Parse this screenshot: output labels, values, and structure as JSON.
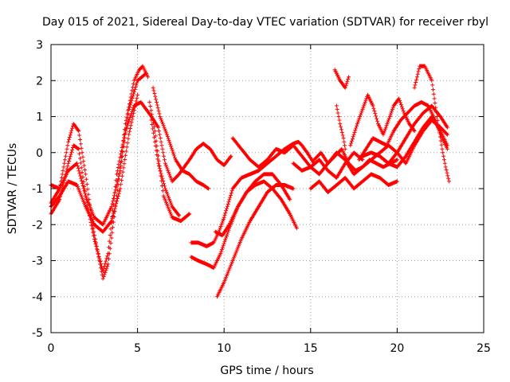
{
  "chart_data": {
    "type": "scatter",
    "title": "Day 015 of 2021, Sidereal Day-to-day VTEC variation (SDTVAR) for receiver rbyl",
    "xlabel": "GPS time / hours",
    "ylabel": "SDTVAR / TECUs",
    "xlim": [
      0,
      25
    ],
    "ylim": [
      -5,
      3
    ],
    "xticks": [
      "0",
      "5",
      "10",
      "15",
      "20",
      "25"
    ],
    "yticks": [
      "3",
      "2",
      "1",
      "0",
      "-1",
      "-2",
      "-3",
      "-4",
      "-5"
    ],
    "grid": true,
    "marker": "+",
    "color": "#ff0000",
    "series": [
      {
        "x": [
          0.0,
          0.5,
          1.0,
          1.3,
          1.6,
          2.0,
          2.4,
          2.8,
          3.0,
          3.3,
          3.8,
          4.3,
          4.8,
          5.1,
          5.3,
          5.6
        ],
        "y": [
          -1.4,
          -1.0,
          0.3,
          0.8,
          0.6,
          -0.6,
          -2.0,
          -3.0,
          -3.5,
          -3.1,
          -1.2,
          0.8,
          2.0,
          2.3,
          2.4,
          2.1
        ]
      },
      {
        "x": [
          0.0,
          0.5,
          1.0,
          1.3,
          1.6,
          2.0,
          2.5,
          3.0,
          3.3,
          3.8,
          4.3,
          4.8,
          5.2,
          5.5,
          5.8
        ],
        "y": [
          -1.7,
          -1.3,
          -0.3,
          0.2,
          0.1,
          -1.2,
          -2.4,
          -3.3,
          -2.8,
          -0.6,
          0.6,
          1.3,
          1.4,
          1.2,
          1.0
        ]
      },
      {
        "x": [
          0.0,
          0.5,
          1.0,
          1.5,
          2.0,
          2.5,
          3.0,
          3.5,
          4.0,
          4.5,
          5.0,
          5.5
        ],
        "y": [
          -0.9,
          -1.0,
          -0.5,
          -0.3,
          -1.2,
          -1.8,
          -2.0,
          -1.5,
          -0.5,
          1.2,
          2.0,
          2.2
        ]
      },
      {
        "x": [
          0.0,
          0.5,
          1.0,
          1.5,
          2.0,
          2.5,
          3.0,
          3.5,
          4.0,
          4.5,
          5.0
        ],
        "y": [
          -1.5,
          -1.2,
          -0.8,
          -0.9,
          -1.5,
          -2.0,
          -2.2,
          -1.9,
          -1.0,
          0.5,
          1.6
        ]
      },
      {
        "x": [
          5.8,
          6.2,
          6.6,
          7.0,
          7.4,
          8.0,
          8.4,
          8.8,
          9.2,
          9.6,
          10.0,
          10.4
        ],
        "y": [
          1.0,
          0.7,
          -0.3,
          -0.8,
          -0.6,
          -0.2,
          0.1,
          0.25,
          0.1,
          -0.2,
          -0.35,
          -0.1
        ]
      },
      {
        "x": [
          5.9,
          6.3,
          6.7,
          7.2,
          7.6,
          8.0,
          8.4,
          8.8,
          9.1
        ],
        "y": [
          1.8,
          1.0,
          0.5,
          -0.2,
          -0.5,
          -0.6,
          -0.8,
          -0.9,
          -1.0
        ]
      },
      {
        "x": [
          5.7,
          6.0,
          6.5,
          7.0,
          7.5,
          8.0
        ],
        "y": [
          1.4,
          0.6,
          -1.2,
          -1.8,
          -1.9,
          -1.7
        ]
      },
      {
        "x": [
          5.8,
          6.2,
          6.6,
          7.0,
          7.4
        ],
        "y": [
          0.9,
          -0.3,
          -1.0,
          -1.5,
          -1.75
        ]
      },
      {
        "x": [
          8.1,
          8.5,
          9.0,
          9.4,
          9.7,
          10.0,
          10.5,
          11.0,
          11.5,
          12.0,
          12.5,
          13.0,
          13.5,
          14.0,
          14.3,
          14.5,
          14.8,
          15.2
        ],
        "y": [
          -2.5,
          -2.5,
          -2.6,
          -2.5,
          -2.2,
          -1.8,
          -1.0,
          -0.7,
          -0.6,
          -0.5,
          -0.3,
          -0.1,
          0.1,
          0.25,
          0.3,
          0.2,
          0.0,
          -0.3
        ]
      },
      {
        "x": [
          8.1,
          8.5,
          9.0,
          9.4,
          9.8,
          10.3,
          10.8,
          11.3,
          11.8,
          12.3,
          12.8,
          13.3,
          13.8
        ],
        "y": [
          -2.9,
          -3.0,
          -3.1,
          -3.2,
          -2.8,
          -2.1,
          -1.5,
          -1.1,
          -0.8,
          -0.6,
          -0.6,
          -0.9,
          -1.3
        ]
      },
      {
        "x": [
          9.5,
          9.9,
          10.3,
          10.8,
          11.3,
          11.8,
          12.3,
          12.8,
          13.3,
          13.8,
          14.2
        ],
        "y": [
          -2.2,
          -2.3,
          -2.0,
          -1.5,
          -1.1,
          -0.9,
          -0.8,
          -1.0,
          -1.3,
          -1.7,
          -2.1
        ]
      },
      {
        "x": [
          9.6,
          10.0,
          10.5,
          11.0,
          11.5,
          12.0,
          12.5,
          13.0,
          13.5,
          14.0
        ],
        "y": [
          -4.0,
          -3.6,
          -3.0,
          -2.4,
          -1.9,
          -1.5,
          -1.1,
          -0.9,
          -0.9,
          -1.0
        ]
      },
      {
        "x": [
          10.5,
          11.0,
          11.5,
          12.0,
          12.5,
          13.0,
          13.5,
          14.0,
          14.5,
          15.0,
          15.5,
          16.0,
          16.5,
          17.0,
          17.5,
          18.0
        ],
        "y": [
          0.4,
          0.1,
          -0.2,
          -0.4,
          -0.2,
          0.1,
          0.0,
          0.2,
          -0.1,
          -0.4,
          -0.2,
          -0.5,
          -0.7,
          -0.3,
          0.0,
          -0.2
        ]
      },
      {
        "x": [
          14.0,
          14.5,
          15.0,
          15.5,
          16.0,
          16.5,
          17.0,
          17.5,
          18.0,
          18.5,
          19.0,
          19.5,
          20.0,
          20.5,
          21.0,
          21.5,
          22.0,
          22.5,
          22.9
        ],
        "y": [
          -0.3,
          -0.5,
          -0.4,
          -0.6,
          -0.3,
          0.0,
          -0.2,
          -0.6,
          -0.4,
          -0.2,
          0.0,
          0.2,
          0.0,
          -0.3,
          0.2,
          0.6,
          0.9,
          0.7,
          0.5
        ]
      },
      {
        "x": [
          15.0,
          15.5,
          16.0,
          16.5,
          17.0,
          17.5,
          18.0,
          18.5,
          19.0,
          19.5,
          20.0
        ],
        "y": [
          -1.0,
          -0.8,
          -1.1,
          -0.9,
          -0.7,
          -1.0,
          -0.8,
          -0.6,
          -0.7,
          -0.9,
          -0.8
        ]
      },
      {
        "x": [
          15.2,
          15.6,
          16.0,
          16.4,
          16.8,
          17.2,
          17.6,
          18.0,
          18.4,
          18.8,
          19.2,
          19.6,
          20.0
        ],
        "y": [
          -0.2,
          0.0,
          -0.3,
          -0.1,
          0.1,
          -0.3,
          -0.5,
          -0.4,
          -0.2,
          -0.3,
          -0.4,
          -0.3,
          -0.2
        ]
      },
      {
        "x": [
          16.4,
          16.7,
          17.0,
          17.2
        ],
        "y": [
          2.3,
          2.0,
          1.8,
          2.1
        ]
      },
      {
        "x": [
          16.5,
          16.7,
          16.9,
          17.0
        ],
        "y": [
          1.3,
          0.8,
          0.4,
          0.1
        ]
      },
      {
        "x": [
          17.3,
          17.7,
          18.0,
          18.3,
          18.6,
          18.9,
          19.2,
          19.5,
          19.8,
          20.1,
          20.4,
          20.7,
          21.0
        ],
        "y": [
          0.2,
          0.8,
          1.2,
          1.6,
          1.3,
          0.8,
          0.5,
          0.9,
          1.3,
          1.5,
          1.1,
          0.8,
          0.6
        ]
      },
      {
        "x": [
          17.8,
          18.2,
          18.6,
          19.0,
          19.4,
          19.8,
          20.2,
          20.6,
          21.0,
          21.4,
          21.8,
          22.2,
          22.6,
          22.9
        ],
        "y": [
          -0.2,
          0.1,
          0.4,
          0.3,
          0.2,
          0.6,
          0.9,
          1.1,
          1.3,
          1.4,
          1.3,
          0.9,
          0.4,
          0.1
        ]
      },
      {
        "x": [
          18.0,
          18.5,
          19.0,
          19.5,
          20.0,
          20.5,
          21.0,
          21.5,
          22.0,
          22.5,
          22.9
        ],
        "y": [
          -0.1,
          0.0,
          -0.1,
          -0.3,
          0.0,
          0.4,
          0.8,
          1.1,
          1.3,
          1.0,
          0.7
        ]
      },
      {
        "x": [
          19.0,
          19.5,
          20.0,
          20.5,
          21.0,
          21.5,
          22.0,
          22.5,
          22.9
        ],
        "y": [
          -0.1,
          -0.3,
          -0.4,
          -0.1,
          0.3,
          0.7,
          1.0,
          0.6,
          0.2
        ]
      },
      {
        "x": [
          21.0,
          21.3,
          21.6,
          22.0,
          22.3,
          22.6,
          22.8,
          23.0
        ],
        "y": [
          1.8,
          2.4,
          2.4,
          2.0,
          1.0,
          0.1,
          -0.4,
          -0.8
        ]
      }
    ]
  }
}
